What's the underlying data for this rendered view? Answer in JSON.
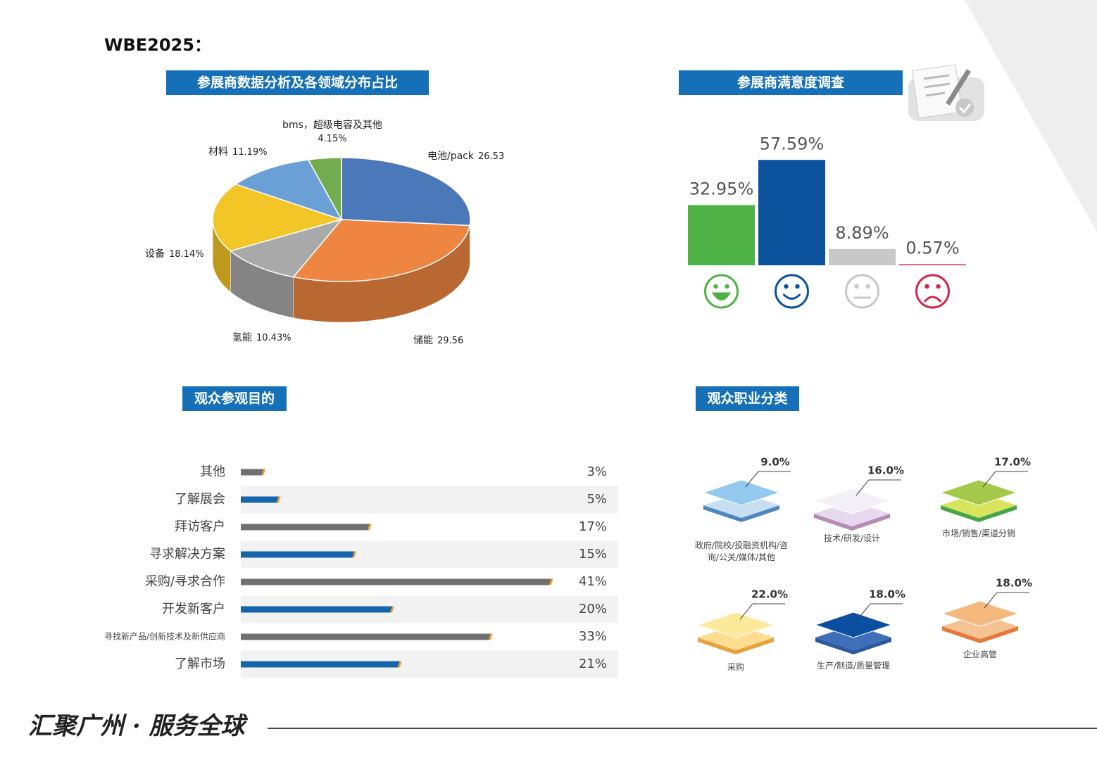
{
  "title": "WBE2025：",
  "footer": "汇聚广州 · 服务全球",
  "chart_data": [
    {
      "type": "pie",
      "title": "参展商数据分析及各领域分布占比",
      "categories": [
        "电池/pack",
        "储能",
        "氢能",
        "设备",
        "材料",
        "bms，超级电容及其他"
      ],
      "values": [
        26.53,
        29.56,
        10.43,
        18.14,
        11.19,
        4.15
      ],
      "value_labels": [
        "26.53",
        "29.56",
        "10.43%",
        "18.14%",
        "11.19%",
        "4.15%"
      ],
      "colors": [
        "#4a78b9",
        "#ee8540",
        "#a9a9a9",
        "#f2c626",
        "#6aa0d6",
        "#73ac4e"
      ]
    },
    {
      "type": "bar",
      "title": "参展商满意度调查",
      "values": [
        32.95,
        57.59,
        8.89,
        0.57
      ],
      "value_labels": [
        "32.95%",
        "57.59%",
        "8.89%",
        "0.57%"
      ],
      "colors": [
        "#4fb247",
        "#0a529c",
        "#c8c8c8",
        "#d6254b"
      ]
    },
    {
      "type": "hbar",
      "title": "观众参观目的",
      "categories": [
        "其他",
        "了解展会",
        "拜访客户",
        "寻求解决方案",
        "采购/寻求合作",
        "开发新客户",
        "寻找新产品/创新技术及新供应商",
        "了解市场"
      ],
      "values": [
        3,
        5,
        17,
        15,
        41,
        20,
        33,
        21
      ],
      "value_labels": [
        "3%",
        "5%",
        "17%",
        "15%",
        "41%",
        "20%",
        "33%",
        "21%"
      ],
      "colors": [
        "#707070",
        "#1565ad",
        "#707070",
        "#1565ad",
        "#707070",
        "#1565ad",
        "#707070",
        "#1565ad"
      ]
    },
    {
      "type": "pictograph",
      "title": "观众职业分类",
      "categories": [
        "政府/院校/投融资机构/咨询/公关/媒体/其他",
        "技术/研发/设计",
        "市场/销售/渠道分销",
        "采购",
        "生产/制造/质量管理",
        "企业高管"
      ],
      "values": [
        9.0,
        16.0,
        17.0,
        22.0,
        18.0,
        18.0
      ],
      "value_labels": [
        "9.0%",
        "16.0%",
        "17.0%",
        "22.0%",
        "18.0%",
        "18.0%"
      ],
      "colors": [
        "#93c9ee",
        "#f4f0f8",
        "#a4c94a",
        "#fde99a",
        "#0a4fa2",
        "#f5b87d"
      ],
      "base_colors": [
        "#c6dff2",
        "#e6d8ee",
        "#d7e45c",
        "#fddd8f",
        "#3f6fb8",
        "#f5c393"
      ],
      "edge_colors": [
        "#4f86c0",
        "#b48cb6",
        "#44a648",
        "#e8a13f",
        "#2d5a9e",
        "#e8773a"
      ]
    }
  ]
}
